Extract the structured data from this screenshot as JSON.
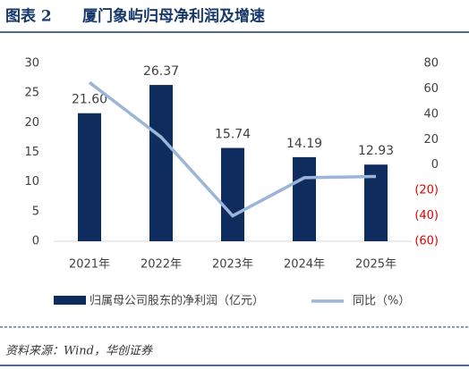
{
  "header": {
    "label": "图表 2",
    "title": "厦门象屿归母净利润及增速"
  },
  "chart_data": {
    "type": "bar-line",
    "categories": [
      "2021年",
      "2022年",
      "2023年",
      "2024年",
      "2025年"
    ],
    "series": [
      {
        "name": "归属母公司股东的净利润（亿元）",
        "type": "bar",
        "color": "#0e2d5e",
        "values": [
          21.6,
          26.37,
          15.74,
          14.19,
          12.93
        ],
        "value_labels": [
          "21.60",
          "26.37",
          "15.74",
          "14.19",
          "12.93"
        ]
      },
      {
        "name": "同比（%）",
        "type": "line",
        "axis": "y2",
        "color": "#9bb5d8",
        "values": [
          65,
          22,
          -40,
          -10,
          -9
        ]
      }
    ],
    "ylim": [
      0,
      30
    ],
    "yticks": [
      0,
      5,
      10,
      15,
      20,
      25,
      30
    ],
    "y2lim": [
      -60,
      80
    ],
    "y2ticks": [
      80,
      60,
      40,
      20,
      0,
      {
        "value": -20,
        "label": "(20)"
      },
      {
        "value": -40,
        "label": "(40)"
      },
      {
        "value": -60,
        "label": "(60)"
      }
    ],
    "negative_tick_color": "#e00000",
    "legend": "bottom"
  },
  "footer": {
    "source": "资料来源：Wind，华创证券"
  }
}
